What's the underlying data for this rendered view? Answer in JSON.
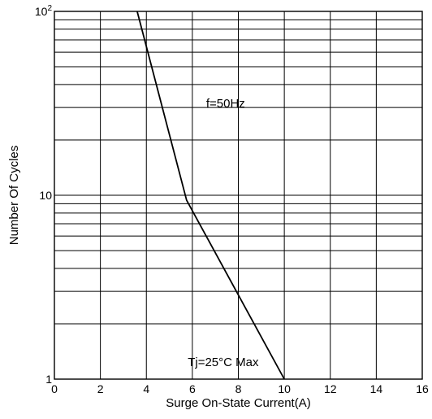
{
  "chart_data": {
    "type": "line",
    "xlabel": "Surge On-State Current(A)",
    "ylabel": "Number Of Cycles",
    "xlim": [
      0,
      16
    ],
    "ylim": [
      1,
      100
    ],
    "yscale": "log",
    "grid": true,
    "x_ticks": [
      "0",
      "2",
      "4",
      "6",
      "8",
      "10",
      "12",
      "14",
      "16"
    ],
    "y_ticks": [
      {
        "value": 1,
        "base": "1",
        "exp": ""
      },
      {
        "value": 10,
        "base": "10",
        "exp": ""
      },
      {
        "value": 100,
        "base": "10",
        "exp": "2"
      }
    ],
    "series": [
      {
        "x": [
          3.6,
          5.75,
          10.0
        ],
        "y": [
          100,
          9.4,
          1
        ]
      }
    ],
    "annotations": [
      {
        "text": "f=50Hz",
        "x": 6.6,
        "y": 30
      },
      {
        "text": "Tj=25°C Max",
        "x": 5.8,
        "y": 1.18
      }
    ]
  }
}
